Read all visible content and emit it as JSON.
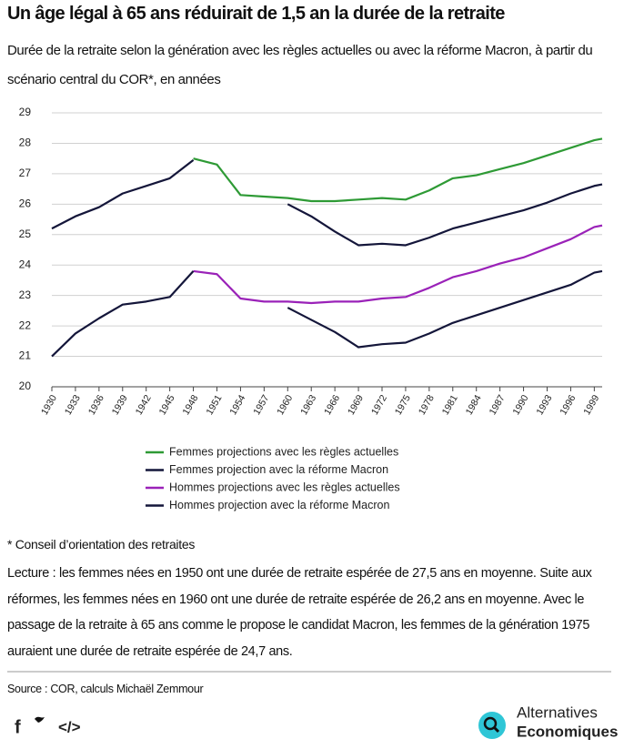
{
  "chart_data": {
    "type": "line",
    "title": "Un âge légal à 65 ans réduirait de 1,5 an la durée de la retraite",
    "subtitle": "Durée de la retraite selon la génération avec les règles actuelles ou avec la réforme Macron, à partir du scénario central du COR*, en années",
    "x": [
      1930,
      1933,
      1936,
      1939,
      1942,
      1945,
      1948,
      1951,
      1954,
      1957,
      1960,
      1963,
      1966,
      1969,
      1972,
      1975,
      1978,
      1981,
      1984,
      1987,
      1990,
      1993,
      1996,
      1999,
      2000
    ],
    "series": [
      {
        "name": "Femmes projections avec les règles actuelles",
        "color": "#2e9a35",
        "values": [
          null,
          null,
          null,
          null,
          null,
          null,
          27.5,
          27.3,
          26.3,
          26.25,
          26.2,
          26.1,
          26.1,
          26.15,
          26.2,
          26.15,
          26.45,
          26.85,
          26.95,
          27.15,
          27.35,
          27.6,
          27.85,
          28.1,
          28.15
        ]
      },
      {
        "name": "Femmes projection avec la réforme Macron",
        "color": "#14163a",
        "values": [
          25.2,
          25.6,
          25.9,
          26.35,
          26.6,
          26.85,
          27.45,
          null,
          null,
          null,
          26.0,
          25.6,
          25.1,
          24.65,
          24.7,
          24.65,
          24.9,
          25.2,
          25.4,
          25.6,
          25.8,
          26.05,
          26.35,
          26.6,
          26.65
        ]
      },
      {
        "name": "Hommes projections avec les règles actuelles",
        "color": "#9a22b8",
        "values": [
          null,
          null,
          null,
          null,
          null,
          null,
          23.8,
          23.7,
          22.9,
          22.8,
          22.8,
          22.75,
          22.8,
          22.8,
          22.9,
          22.95,
          23.25,
          23.6,
          23.8,
          24.05,
          24.25,
          24.55,
          24.85,
          25.25,
          25.3
        ]
      },
      {
        "name": "Hommes projection avec la réforme Macron",
        "color": "#14163a",
        "values": [
          21.0,
          21.75,
          22.25,
          22.7,
          22.8,
          22.95,
          23.8,
          null,
          null,
          null,
          22.6,
          22.2,
          21.8,
          21.3,
          21.4,
          21.45,
          21.75,
          22.1,
          22.35,
          22.6,
          22.85,
          23.1,
          23.35,
          23.75,
          23.8
        ]
      }
    ],
    "xlim": [
      1930,
      2000
    ],
    "xticks": [
      1930,
      1933,
      1936,
      1939,
      1942,
      1945,
      1948,
      1951,
      1954,
      1957,
      1960,
      1963,
      1966,
      1969,
      1972,
      1975,
      1978,
      1981,
      1984,
      1987,
      1990,
      1993,
      1996,
      1999
    ],
    "ylim": [
      20,
      29
    ],
    "yticks": [
      20,
      21,
      22,
      23,
      24,
      25,
      26,
      27,
      28,
      29
    ],
    "grid": true
  },
  "footnote": "* Conseil d’orientation des retraites",
  "reading": "Lecture : les femmes nées en 1950 ont une durée de retraite espérée de 27,5 ans en moyenne. Suite aux réformes, les femmes nées en 1960 ont une durée de retraite espérée de 26,2 ans en moyenne. Avec le passage de la retraite à 65 ans comme le propose le candidat Macron, les femmes de la génération 1975 auraient une durée de retraite espérée de 24,7 ans.",
  "source": "Source : COR, calculs Michaël Zemmour",
  "share": {
    "facebook": "f",
    "embed": "</>"
  },
  "brand": {
    "line1": "Alternatives",
    "line2": "Economiques"
  }
}
